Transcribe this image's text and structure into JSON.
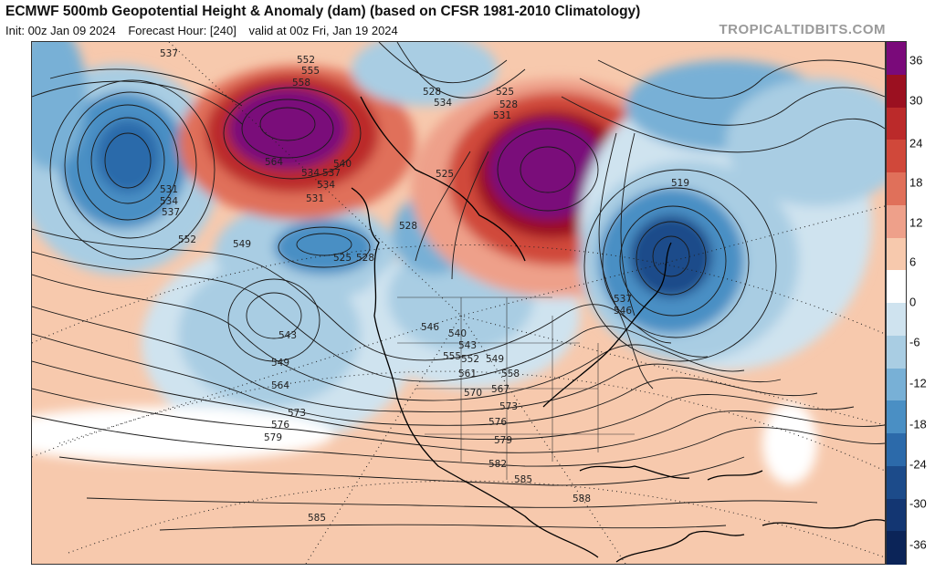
{
  "header": {
    "title": "ECMWF 500mb Geopotential Height & Anomaly (dam) (based on CFSR 1981-2010 Climatology)",
    "init": "Init: 00z Jan 09 2024",
    "forecast_hour": "Forecast Hour: [240]",
    "valid": "valid at 00z Fri, Jan 19 2024",
    "brand": "TROPICALTIDBITS.COM"
  },
  "colorbar": {
    "labels": [
      "36",
      "30",
      "24",
      "18",
      "12",
      "6",
      "0",
      "-6",
      "-12",
      "-18",
      "-24",
      "-30",
      "-36"
    ],
    "colors": [
      "#7a0a7a",
      "#9b1020",
      "#bb2a2a",
      "#d0483a",
      "#e0705a",
      "#eea08a",
      "#f7c9ad",
      "#ffffff",
      "#cfe3ef",
      "#a9cde3",
      "#78b0d6",
      "#4a8fc4",
      "#2c6aaa",
      "#1c4b8a",
      "#133672",
      "#0b2458"
    ]
  },
  "map": {
    "contour_labels": [
      "537",
      "552",
      "555",
      "558",
      "528",
      "534",
      "525",
      "528",
      "531",
      "534",
      "540",
      "564",
      "537",
      "534",
      "531",
      "531",
      "534",
      "537",
      "552",
      "549",
      "525",
      "528",
      "528",
      "525",
      "519",
      "543",
      "549",
      "564",
      "573",
      "576",
      "579",
      "537",
      "546",
      "546",
      "540",
      "543",
      "555",
      "552",
      "549",
      "561",
      "558",
      "570",
      "567",
      "573",
      "576",
      "579",
      "582",
      "585",
      "585",
      "588"
    ]
  }
}
